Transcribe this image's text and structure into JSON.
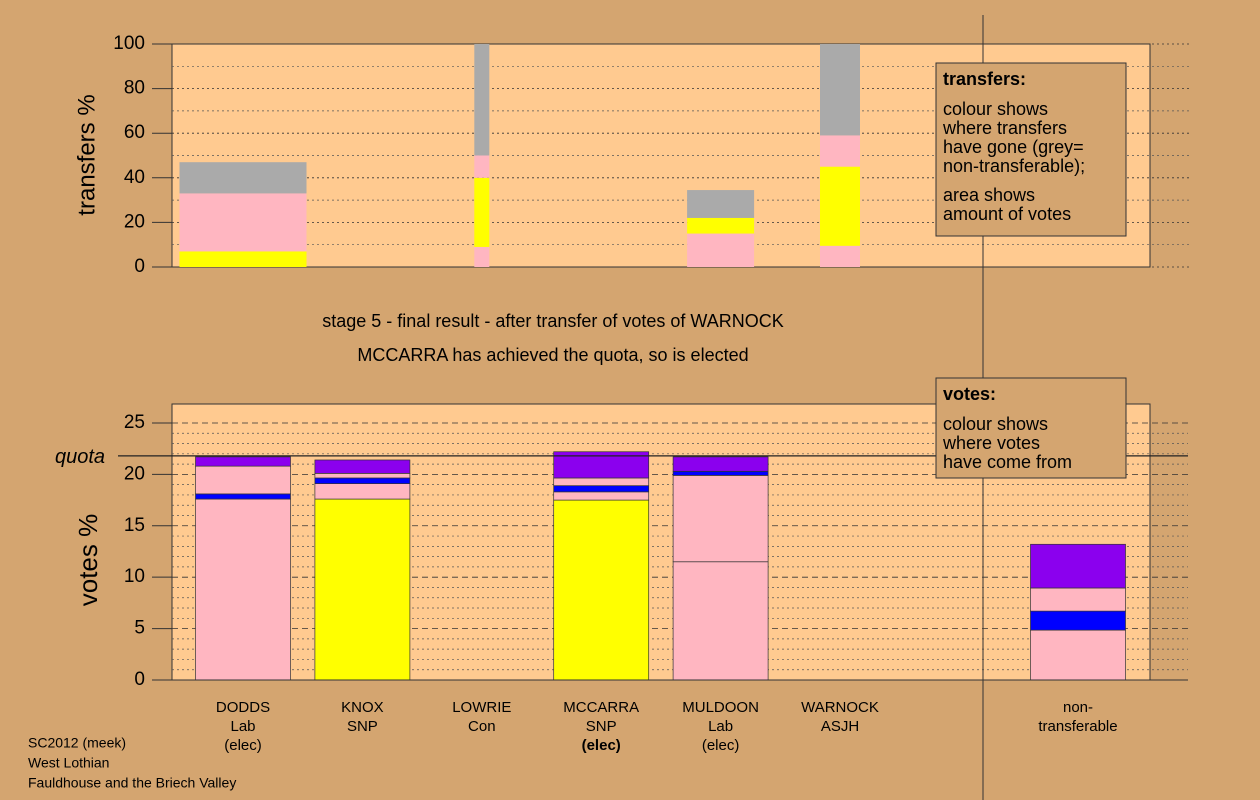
{
  "chart_data": [
    {
      "type": "bar",
      "stacked": true,
      "ylabel": "transfers %",
      "ylim": [
        0,
        100
      ],
      "yticks": [
        0,
        20,
        40,
        60,
        80,
        100
      ],
      "grid": true,
      "stacks": [
        [
          {
            "color": "#ffff00",
            "value": 7
          },
          {
            "color": "#ffb6c1",
            "value": 26
          },
          {
            "color": "#aaaaaa",
            "value": 14
          }
        ],
        [],
        [
          {
            "color": "#ffb6c1",
            "value": 9
          },
          {
            "color": "#ffff00",
            "value": 31
          },
          {
            "color": "#ffb6c1",
            "value": 10
          },
          {
            "color": "#aaaaaa",
            "value": 50
          }
        ],
        [],
        [
          {
            "color": "#ffb6c1",
            "value": 15
          },
          {
            "color": "#ffff00",
            "value": 7
          },
          {
            "color": "#aaaaaa",
            "value": 12.5
          }
        ],
        [
          {
            "color": "#ffb6c1",
            "value": 9.5
          },
          {
            "color": "#ffff00",
            "value": 35.5
          },
          {
            "color": "#ffb6c1",
            "value": 14
          },
          {
            "color": "#aaaaaa",
            "value": 41
          }
        ]
      ],
      "legend": {
        "title": "transfers:",
        "lines": [
          "colour shows",
          "where transfers",
          "have gone (grey=",
          "non-transferable);"
        ],
        "lines2": [
          "area shows",
          "amount of votes"
        ]
      }
    },
    {
      "type": "bar",
      "stacked": true,
      "title": "stage 5 - final result - after transfer of votes of WARNOCK",
      "subtitle": "MCCARRA has achieved the quota, so is elected",
      "ylabel": "votes %",
      "ylim": [
        0,
        27
      ],
      "yticks": [
        0,
        5,
        10,
        15,
        20,
        25
      ],
      "grid": true,
      "quota": 21.8,
      "quota_label": "quota",
      "labels": [
        [
          "DODDS",
          "Lab",
          "(elec)"
        ],
        [
          "KNOX",
          "SNP"
        ],
        [
          "LOWRIE",
          "Con"
        ],
        [
          "MCCARRA",
          "SNP",
          "(elec)"
        ],
        [
          "MULDOON",
          "Lab",
          "(elec)"
        ],
        [
          "WARNOCK",
          "ASJH"
        ],
        [
          "non-",
          "transferable"
        ]
      ],
      "highlight_category": 3,
      "stacks": [
        [
          {
            "color": "#ffb6c1",
            "value": 17.6
          },
          {
            "color": "#0000ff",
            "value": 0.5
          },
          {
            "color": "#ffb6c1",
            "value": 2.7
          },
          {
            "color": "#8b00ee",
            "value": 0.9
          }
        ],
        [
          {
            "color": "#ffff00",
            "value": 17.6
          },
          {
            "color": "#ffb6c1",
            "value": 1.5
          },
          {
            "color": "#0000ff",
            "value": 0.55
          },
          {
            "color": "#ffb6c1",
            "value": 0.45
          },
          {
            "color": "#8b00ee",
            "value": 1.3
          }
        ],
        [],
        [
          {
            "color": "#ffff00",
            "value": 17.5
          },
          {
            "color": "#ffb6c1",
            "value": 0.8
          },
          {
            "color": "#0000ff",
            "value": 0.6
          },
          {
            "color": "#ffb6c1",
            "value": 0.75
          },
          {
            "color": "#8b00ee",
            "value": 2.55
          }
        ],
        [
          {
            "color": "#ffb6c1",
            "value": 11.5
          },
          {
            "color": "#ffb6c1",
            "value": 8.4
          },
          {
            "color": "#0000ff",
            "value": 0.4
          },
          {
            "color": "#8b00ee",
            "value": 1.4
          }
        ],
        [],
        [
          {
            "color": "#ffb6c1",
            "value": 4.85
          },
          {
            "color": "#0000ff",
            "value": 1.85
          },
          {
            "color": "#ffb6c1",
            "value": 2.25
          },
          {
            "color": "#8b00ee",
            "value": 4.25
          }
        ]
      ],
      "legend": {
        "title": "votes:",
        "lines": [
          "colour shows",
          "where votes",
          "have come from"
        ]
      }
    }
  ],
  "footer": [
    "SC2012 (meek)",
    "West Lothian",
    "Fauldhouse and the Briech Valley"
  ]
}
